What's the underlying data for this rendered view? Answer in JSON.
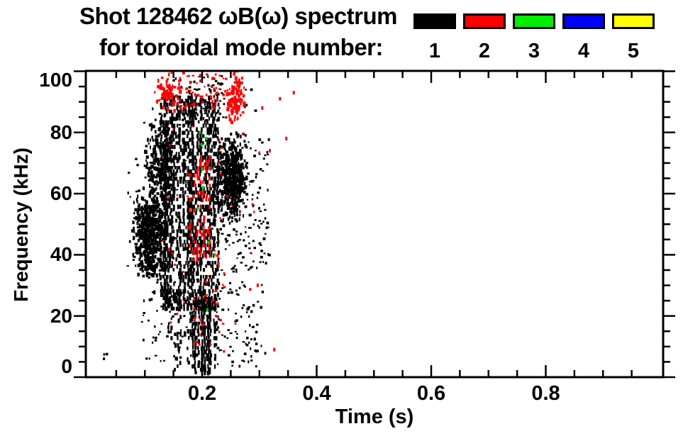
{
  "chart_data": {
    "type": "scatter",
    "title_line1": "Shot 128462 ωB(ω) spectrum",
    "title_line2": "for toroidal mode number:",
    "xlabel": "Time (s)",
    "ylabel": "Frequency (kHz)",
    "xlim": [
      0,
      1.0
    ],
    "ylim": [
      0,
      100
    ],
    "grid": false,
    "x_major_ticks": [
      {
        "value": 0.2,
        "label": "0.2"
      },
      {
        "value": 0.4,
        "label": "0.4"
      },
      {
        "value": 0.6,
        "label": "0.6"
      },
      {
        "value": 0.8,
        "label": "0.8"
      }
    ],
    "x_minor_step": 0.05,
    "y_major_ticks": [
      {
        "value": 0,
        "label": "0"
      },
      {
        "value": 20,
        "label": "20"
      },
      {
        "value": 40,
        "label": "40"
      },
      {
        "value": 60,
        "label": "60"
      },
      {
        "value": 80,
        "label": "80"
      },
      {
        "value": 100,
        "label": "100"
      }
    ],
    "y_minor_step": 5,
    "legend": {
      "position": "top-right",
      "entries": [
        {
          "label": "1",
          "color": "#000000"
        },
        {
          "label": "2",
          "color": "#ff0000"
        },
        {
          "label": "3",
          "color": "#00ee00"
        },
        {
          "label": "4",
          "color": "#0000ff"
        },
        {
          "label": "5",
          "color": "#ffff00"
        }
      ]
    },
    "summary": "Magnetic spectrogram burst between t=0.08 s and t=0.31 s spanning 0-100 kHz; dominated by n=1 (black) vertical striations, n=2 (red) activity mostly at 85-100 kHz and near t=0.25 s, a few n=3 (green) points near t=0.2 s; no n=4 (blue) or n=5 (yellow) points visible; plot empty for t>0.36 s.",
    "clusters": [
      {
        "kind": "blob",
        "mode": 1,
        "color": "#000000",
        "t": [
          0.078,
          0.14
        ],
        "f": [
          33,
          62
        ],
        "n": 620
      },
      {
        "kind": "blob",
        "mode": 1,
        "color": "#000000",
        "t": [
          0.098,
          0.155
        ],
        "f": [
          55,
          86
        ],
        "n": 260
      },
      {
        "kind": "dots",
        "mode": 1,
        "color": "#000000",
        "t": [
          0.07,
          0.155
        ],
        "f": [
          25,
          72
        ],
        "n": 90
      },
      {
        "kind": "dots",
        "mode": 1,
        "color": "#000000",
        "t": [
          0.09,
          0.17
        ],
        "f": [
          5,
          35
        ],
        "n": 45
      },
      {
        "kind": "stripes",
        "mode": 1,
        "color": "#000000",
        "t": [
          0.128,
          0.228
        ],
        "f": [
          22,
          92
        ],
        "cols": 36,
        "p": 0.52
      },
      {
        "kind": "stripes",
        "mode": 1,
        "color": "#000000",
        "t": [
          0.14,
          0.228
        ],
        "f": [
          2,
          28
        ],
        "cols": 16,
        "p": 0.3
      },
      {
        "kind": "stripes",
        "mode": 1,
        "color": "#000000",
        "t": [
          0.182,
          0.217
        ],
        "f": [
          1,
          26
        ],
        "cols": 10,
        "p": 0.65
      },
      {
        "kind": "blob",
        "mode": 1,
        "color": "#000000",
        "t": [
          0.222,
          0.28
        ],
        "f": [
          50,
          80
        ],
        "n": 620
      },
      {
        "kind": "dots",
        "mode": 1,
        "color": "#000000",
        "t": [
          0.225,
          0.305
        ],
        "f": [
          3,
          50
        ],
        "n": 120
      },
      {
        "kind": "dots",
        "mode": 1,
        "color": "#000000",
        "t": [
          0.148,
          0.24
        ],
        "f": [
          84,
          99
        ],
        "n": 100
      },
      {
        "kind": "dots",
        "mode": 1,
        "color": "#000000",
        "t": [
          0.09,
          0.312
        ],
        "f": [
          5,
          95
        ],
        "n": 110
      },
      {
        "kind": "dots",
        "mode": 1,
        "color": "#000000",
        "t": [
          0.024,
          0.034
        ],
        "f": [
          4,
          8
        ],
        "n": 3
      },
      {
        "kind": "dots",
        "mode": 1,
        "color": "#000000",
        "t": [
          0.28,
          0.318
        ],
        "f": [
          35,
          78
        ],
        "n": 55
      },
      {
        "kind": "blob",
        "mode": 2,
        "color": "#ff0000",
        "t": [
          0.115,
          0.168
        ],
        "f": [
          87,
          100
        ],
        "n": 80
      },
      {
        "kind": "dots",
        "mode": 2,
        "color": "#ff0000",
        "t": [
          0.16,
          0.245
        ],
        "f": [
          88,
          100
        ],
        "n": 60
      },
      {
        "kind": "blob",
        "mode": 2,
        "color": "#ff0000",
        "t": [
          0.243,
          0.274
        ],
        "f": [
          83,
          100
        ],
        "n": 110
      },
      {
        "kind": "stripes",
        "mode": 2,
        "color": "#ff0000",
        "t": [
          0.175,
          0.216
        ],
        "f": [
          38,
          72
        ],
        "cols": 7,
        "p": 0.32
      },
      {
        "kind": "dots",
        "mode": 2,
        "color": "#ff0000",
        "t": [
          0.185,
          0.24
        ],
        "f": [
          8,
          40
        ],
        "n": 36
      },
      {
        "kind": "dots",
        "mode": 2,
        "color": "#ff0000",
        "t": [
          0.13,
          0.305
        ],
        "f": [
          10,
          85
        ],
        "n": 40
      },
      {
        "kind": "pts",
        "mode": 2,
        "color": "#ff0000",
        "points": [
          [
            0.305,
            88
          ],
          [
            0.318,
            74
          ],
          [
            0.336,
            91
          ],
          [
            0.347,
            78
          ],
          [
            0.326,
            9
          ],
          [
            0.297,
            30
          ],
          [
            0.36,
            93
          ]
        ]
      },
      {
        "kind": "pts",
        "mode": 3,
        "color": "#00cc00",
        "points": [
          [
            0.196,
            80
          ],
          [
            0.199,
            76
          ],
          [
            0.202,
            62
          ],
          [
            0.207,
            78
          ],
          [
            0.211,
            44
          ],
          [
            0.209,
            22
          ],
          [
            0.222,
            40
          ],
          [
            0.192,
            55
          ],
          [
            0.2,
            68
          ]
        ]
      }
    ]
  }
}
